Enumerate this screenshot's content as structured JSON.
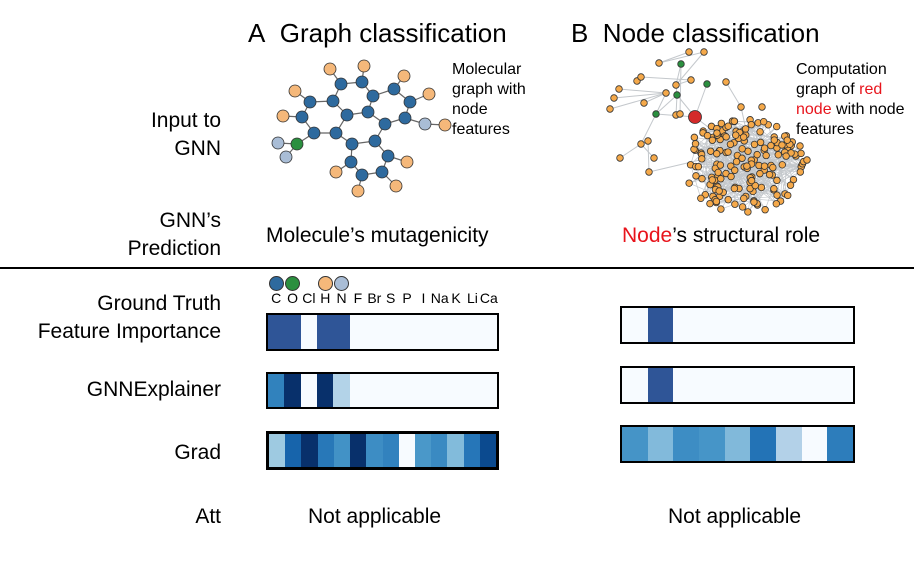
{
  "panels": {
    "a": {
      "letter": "A",
      "title": "Graph classification",
      "caption": [
        "Molecular",
        "graph with",
        "node",
        "features"
      ],
      "prediction": "Molecule’s mutagenicity",
      "att": "Not applicable"
    },
    "b": {
      "letter": "B",
      "title": "Node classification",
      "caption_parts": [
        "Computation",
        "graph of ",
        "red",
        "node",
        " with node",
        "features"
      ],
      "prediction_red": "Node",
      "prediction_rest": "’s structural role",
      "att": "Not applicable"
    }
  },
  "rows": {
    "input": [
      "Input to",
      "GNN"
    ],
    "prediction": [
      "GNN’s",
      "Prediction"
    ],
    "ground_truth": [
      "Ground Truth",
      "Feature Importance"
    ],
    "gnnexplainer": "GNNExplainer",
    "grad": "Grad",
    "att": "Att"
  },
  "element_labels": [
    "C",
    "O",
    "Cl",
    "H",
    "N",
    "F",
    "Br",
    "S",
    "P",
    "I",
    "Na",
    "K",
    "Li",
    "Ca"
  ],
  "legend_dots": [
    {
      "label": "C",
      "color": "#2e6a9e"
    },
    {
      "label": "O",
      "color": "#2b8f3f"
    },
    {
      "label": "H",
      "color": "#f5b87a"
    },
    {
      "label": "N",
      "color": "#a9bdd6"
    }
  ],
  "colors": {
    "red": "#e8141c",
    "atom_c": "#2e6a9e",
    "atom_o": "#2b8f3f",
    "atom_h": "#f5b87a",
    "atom_n": "#a9bdd6",
    "node": "#f5a94a",
    "node_green": "#2b8f3f",
    "node_red": "#d42a2a",
    "edge": "#c4c8cc"
  },
  "heatmaps": {
    "a_ground_truth": [
      "#2f5597",
      "#2f5597",
      "#f7fbff",
      "#2f5597",
      "#2f5597",
      "#f7fbff",
      "#f7fbff",
      "#f7fbff",
      "#f7fbff",
      "#f7fbff",
      "#f7fbff",
      "#f7fbff",
      "#f7fbff",
      "#f7fbff"
    ],
    "a_gnnexplainer": [
      "#3182bd",
      "#08306b",
      "#f7fbff",
      "#08306b",
      "#b3d3e8",
      "#f7fbff",
      "#f7fbff",
      "#f7fbff",
      "#f7fbff",
      "#f7fbff",
      "#f7fbff",
      "#f7fbff",
      "#f7fbff",
      "#f7fbff"
    ],
    "a_grad": [
      "#9ecae1",
      "#1764ab",
      "#08306b",
      "#2878b8",
      "#4292c6",
      "#08306b",
      "#3d8dc4",
      "#3282be",
      "#f7fbff",
      "#4a98c9",
      "#3a8ac2",
      "#82bbdb",
      "#2676b8",
      "#0b4a8f"
    ],
    "b_ground_truth": [
      "#f7fbff",
      "#2f5597",
      "#f7fbff",
      "#f7fbff",
      "#f7fbff",
      "#f7fbff",
      "#f7fbff",
      "#f7fbff",
      "#f7fbff"
    ],
    "b_gnnexplainer": [
      "#f7fbff",
      "#2f5597",
      "#f7fbff",
      "#f7fbff",
      "#f7fbff",
      "#f7fbff",
      "#f7fbff",
      "#f7fbff",
      "#f7fbff"
    ],
    "b_grad": [
      "#4594c7",
      "#82badb",
      "#3d8dc4",
      "#4695c8",
      "#81b9da",
      "#2373b6",
      "#b3d1e8",
      "#f7fbff",
      "#2d7dbb"
    ]
  }
}
